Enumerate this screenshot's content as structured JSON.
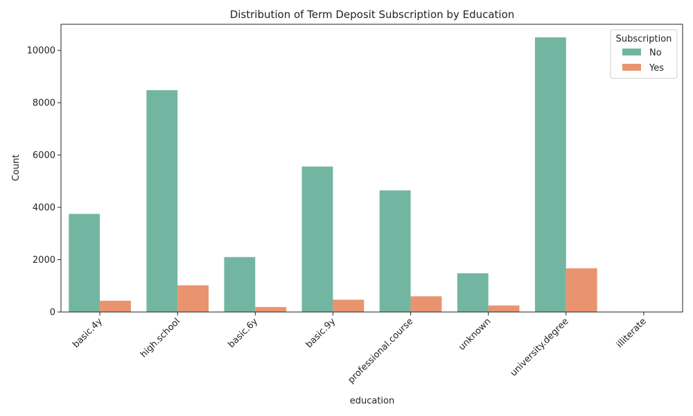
{
  "chart_data": {
    "type": "bar",
    "title": "Distribution of Term Deposit Subscription by Education",
    "xlabel": "education",
    "ylabel": "Count",
    "categories": [
      "basic.4y",
      "high.school",
      "basic.6y",
      "basic.9y",
      "professional.course",
      "unknown",
      "university.degree",
      "illiterate"
    ],
    "series": [
      {
        "name": "No",
        "color": "#72b6a1",
        "values": [
          3750,
          8480,
          2100,
          5560,
          4650,
          1480,
          10500,
          15
        ]
      },
      {
        "name": "Yes",
        "color": "#e9946e",
        "values": [
          430,
          1020,
          190,
          470,
          600,
          250,
          1670,
          4
        ]
      }
    ],
    "yticks": [
      0,
      2000,
      4000,
      6000,
      8000,
      10000
    ],
    "ylim": [
      0,
      11000
    ],
    "legend": {
      "title": "Subscription",
      "position": "top-right"
    },
    "grid": false
  }
}
